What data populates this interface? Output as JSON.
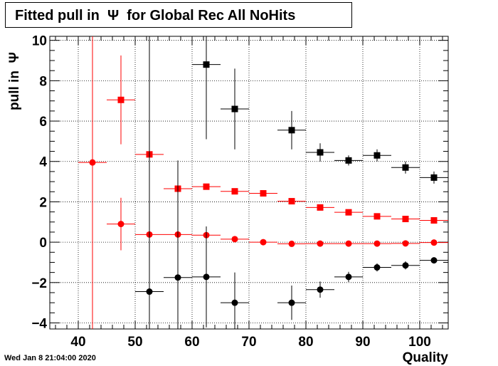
{
  "title": "Fitted pull in  Ψ  for Global Rec All NoHits",
  "timestamp": "Wed Jan  8 21:04:00 2020",
  "chart_data": {
    "type": "scatter",
    "xlabel": "Quality",
    "ylabel": "pull in  Ψ",
    "xlim": [
      35,
      105
    ],
    "ylim": [
      -4.3,
      10.2
    ],
    "grid": true,
    "x_ticks": [
      40,
      50,
      60,
      70,
      80,
      90,
      100
    ],
    "y_ticks": [
      -4,
      -2,
      0,
      2,
      4,
      6,
      8,
      10
    ],
    "colors": {
      "red": "#ff0000",
      "black": "#000000"
    },
    "series": [
      {
        "color": "red",
        "marker": "square",
        "points": [
          {
            "x": 47.5,
            "y": 7.05,
            "err": 2.2
          },
          {
            "x": 52.5,
            "y": 4.35,
            "err": 0.1
          },
          {
            "x": 57.5,
            "y": 2.65,
            "err": 0.1
          },
          {
            "x": 62.5,
            "y": 2.75,
            "err": 0.1
          },
          {
            "x": 67.5,
            "y": 2.52,
            "err": 0.08
          },
          {
            "x": 72.5,
            "y": 2.42,
            "err": 0.08
          },
          {
            "x": 77.5,
            "y": 2.03,
            "err": 0.08
          },
          {
            "x": 82.5,
            "y": 1.72,
            "err": 0.08
          },
          {
            "x": 87.5,
            "y": 1.48,
            "err": 0.06
          },
          {
            "x": 92.5,
            "y": 1.28,
            "err": 0.06
          },
          {
            "x": 97.5,
            "y": 1.15,
            "err": 0.06
          },
          {
            "x": 102.5,
            "y": 1.08,
            "err": 0.06
          }
        ]
      },
      {
        "color": "red",
        "marker": "circle",
        "points": [
          {
            "x": 42.5,
            "y": 3.95,
            "err": 14.5
          },
          {
            "x": 47.5,
            "y": 0.9,
            "err": 1.3
          },
          {
            "x": 52.5,
            "y": 0.38,
            "err": 0.08
          },
          {
            "x": 57.5,
            "y": 0.38,
            "err": 0.08
          },
          {
            "x": 62.5,
            "y": 0.35,
            "err": 0.08
          },
          {
            "x": 67.5,
            "y": 0.15,
            "err": 0.06
          },
          {
            "x": 72.5,
            "y": 0.0,
            "err": 0.05
          },
          {
            "x": 77.5,
            "y": -0.08,
            "err": 0.05
          },
          {
            "x": 82.5,
            "y": -0.07,
            "err": 0.05
          },
          {
            "x": 87.5,
            "y": -0.07,
            "err": 0.05
          },
          {
            "x": 92.5,
            "y": -0.07,
            "err": 0.05
          },
          {
            "x": 97.5,
            "y": -0.06,
            "err": 0.05
          },
          {
            "x": 102.5,
            "y": -0.02,
            "err": 0.05
          }
        ]
      },
      {
        "color": "black",
        "marker": "square",
        "points": [
          {
            "x": 62.5,
            "y": 8.8,
            "err": 3.7
          },
          {
            "x": 67.5,
            "y": 6.6,
            "err": 2.0
          },
          {
            "x": 77.5,
            "y": 5.55,
            "err": 0.95
          },
          {
            "x": 82.5,
            "y": 4.45,
            "err": 0.45
          },
          {
            "x": 87.5,
            "y": 4.05,
            "err": 0.25
          },
          {
            "x": 92.5,
            "y": 4.3,
            "err": 0.3
          },
          {
            "x": 97.5,
            "y": 3.7,
            "err": 0.3
          },
          {
            "x": 102.5,
            "y": 3.2,
            "err": 0.3
          }
        ]
      },
      {
        "color": "black",
        "marker": "circle",
        "points": [
          {
            "x": 52.5,
            "y": -2.45,
            "err": 13.0
          },
          {
            "x": 57.5,
            "y": -1.75,
            "err": 5.8
          },
          {
            "x": 62.5,
            "y": -1.72,
            "err": 2.5
          },
          {
            "x": 67.5,
            "y": -3.0,
            "err": 1.5
          },
          {
            "x": 77.5,
            "y": -3.0,
            "err": 0.85
          },
          {
            "x": 82.5,
            "y": -2.35,
            "err": 0.4
          },
          {
            "x": 87.5,
            "y": -1.72,
            "err": 0.25
          },
          {
            "x": 92.5,
            "y": -1.25,
            "err": 0.2
          },
          {
            "x": 97.5,
            "y": -1.15,
            "err": 0.2
          },
          {
            "x": 102.5,
            "y": -0.9,
            "err": 0.15
          }
        ]
      }
    ]
  }
}
